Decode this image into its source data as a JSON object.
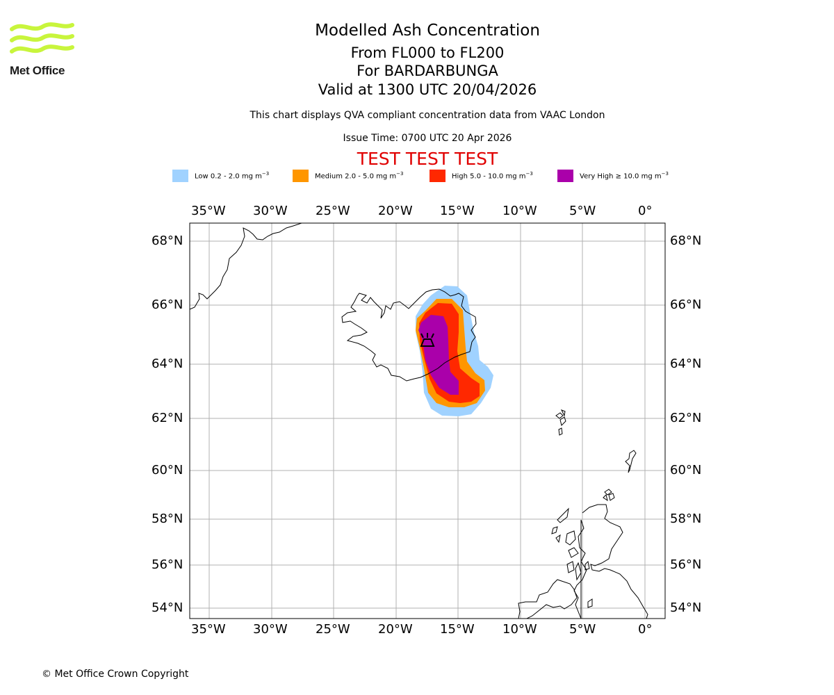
{
  "brand": {
    "name": "Met Office",
    "logo_color": "#c8f53c"
  },
  "header": {
    "title": "Modelled Ash Concentration",
    "level_range": "From FL000 to FL200",
    "volcano": "For BARDARBUNGA",
    "valid_time": "Valid at 1300 UTC 20/04/2026",
    "description": "This chart displays QVA compliant concentration data from VAAC London",
    "issue_time": "Issue Time: 0700 UTC 20 Apr 2026",
    "banner": "TEST TEST TEST"
  },
  "legend": [
    {
      "label": "Low 0.2 - 2.0 mg m",
      "color": "#a0d2ff"
    },
    {
      "label": "Medium 2.0 - 5.0 mg m",
      "color": "#ff9600"
    },
    {
      "label": "High 5.0 - 10.0 mg m",
      "color": "#ff2800"
    },
    {
      "label": "Very High ≥ 10.0 mg m",
      "color": "#aa00aa"
    }
  ],
  "legend_unit_exp": "−3",
  "map": {
    "extent": {
      "lon_min": -36.5,
      "lon_max": 1.5,
      "lat_min": 53.5,
      "lat_max": 68.6
    },
    "lon_labels": [
      "35°W",
      "30°W",
      "25°W",
      "20°W",
      "15°W",
      "10°W",
      "5°W",
      "0°"
    ],
    "lat_labels": [
      "68°N",
      "66°N",
      "64°N",
      "62°N",
      "60°N",
      "58°N",
      "56°N",
      "54°N"
    ],
    "volcano_marker": "volcano-icon",
    "coastline_color": "#000000",
    "grid_color": "#b0b0b0"
  },
  "footer": {
    "copyright": "© Met Office Crown Copyright"
  }
}
